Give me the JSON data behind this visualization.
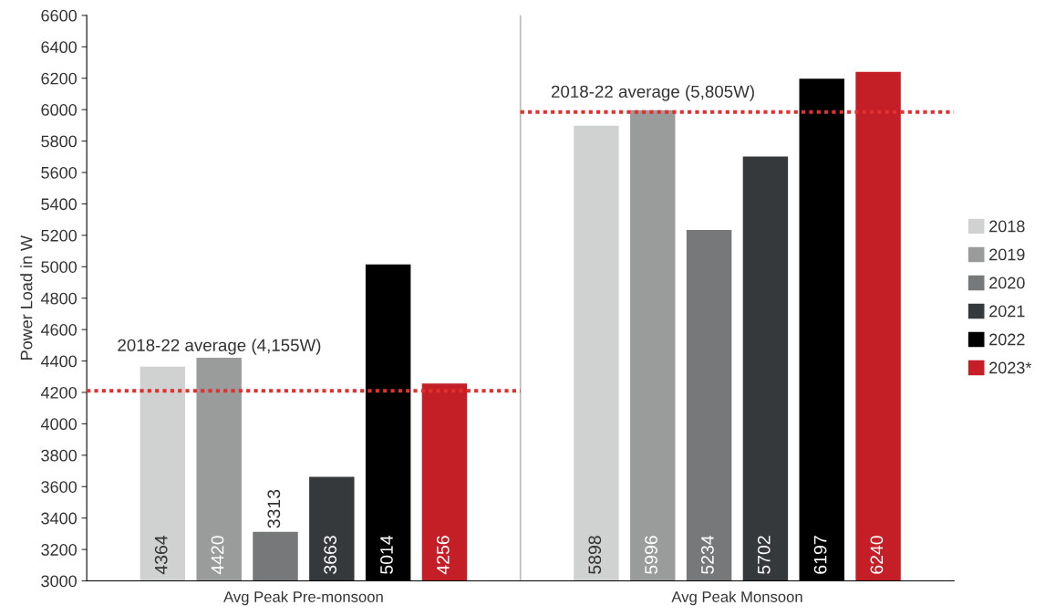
{
  "chart_data": {
    "type": "bar",
    "categories": [
      "Avg Peak Pre-monsoon",
      "Avg Peak Monsoon"
    ],
    "series": [
      {
        "name": "2018",
        "color": "#d0d2d1",
        "values": [
          4364,
          5898
        ]
      },
      {
        "name": "2019",
        "color": "#9a9c9c",
        "values": [
          4420,
          5996
        ]
      },
      {
        "name": "2020",
        "color": "#76787a",
        "values": [
          3313,
          5234
        ]
      },
      {
        "name": "2021",
        "color": "#36393c",
        "values": [
          3663,
          5702
        ]
      },
      {
        "name": "2022",
        "color": "#000000",
        "values": [
          5014,
          6197
        ]
      },
      {
        "name": "2023*",
        "color": "#c41f26",
        "values": [
          4256,
          6240
        ]
      }
    ],
    "ylabel": "Power Load in W",
    "ylim": [
      3000,
      6600
    ],
    "yticks": [
      3000,
      3200,
      3400,
      3600,
      3800,
      4000,
      4200,
      4400,
      4600,
      4800,
      5000,
      5200,
      5400,
      5600,
      5800,
      6000,
      6200,
      6400,
      6600
    ],
    "data_labels": true,
    "legend": "right",
    "grid": false,
    "ref_lines": [
      {
        "axis": "y",
        "value": 4210,
        "label": "2018-22 average (4,155W)",
        "color": "#e03030",
        "line_style": "dotted"
      },
      {
        "axis": "y",
        "value": 5985,
        "label": "2018-22 average (5,805W)",
        "color": "#e03030",
        "line_style": "dotted"
      }
    ]
  }
}
